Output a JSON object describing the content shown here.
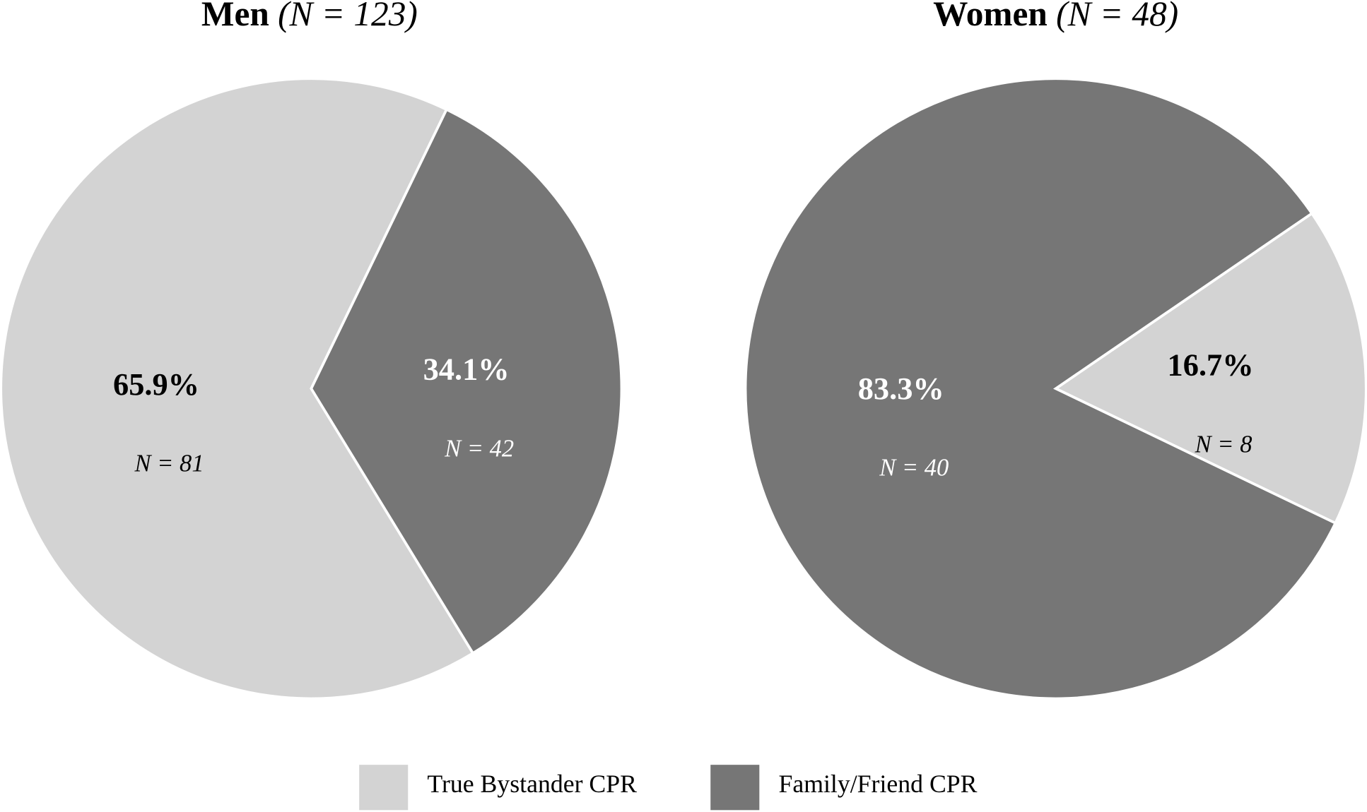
{
  "chart_data": [
    {
      "type": "pie",
      "title": "Men",
      "subtitle": "(N = 123)",
      "categories": [
        "True Bystander CPR",
        "Family/Friend CPR"
      ],
      "colors": [
        "#d3d3d3",
        "#767676"
      ],
      "values": [
        65.9,
        34.1
      ],
      "value_labels": [
        "65.9%",
        "34.1%"
      ],
      "count_labels": [
        "N = 81",
        "N = 42"
      ]
    },
    {
      "type": "pie",
      "title": "Women",
      "subtitle": "(N = 48)",
      "categories": [
        "True Bystander CPR",
        "Family/Friend CPR"
      ],
      "colors": [
        "#d3d3d3",
        "#767676"
      ],
      "values": [
        16.7,
        83.3
      ],
      "value_labels": [
        "16.7%",
        "83.3%"
      ],
      "count_labels": [
        "N = 8",
        "N = 40"
      ]
    }
  ]
}
